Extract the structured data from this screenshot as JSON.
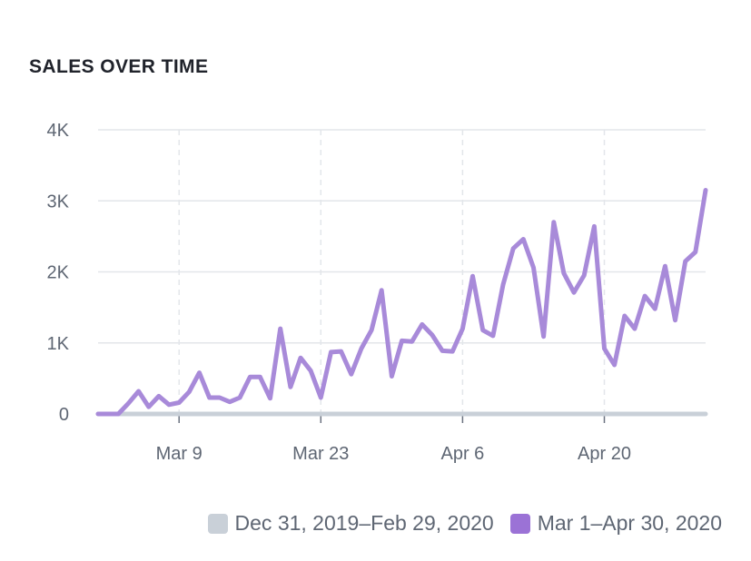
{
  "colors": {
    "previous": "#c9d0d8",
    "current": "#a88ad9",
    "current_swatch": "#9b72d6",
    "grid": "#e3e6ea",
    "axis_text": "#5e6673"
  },
  "chart_data": {
    "type": "line",
    "title": "SALES OVER TIME",
    "xlabel": "",
    "ylabel": "",
    "ylim": [
      0,
      4000
    ],
    "y_ticks": [
      {
        "value": 0,
        "label": "0"
      },
      {
        "value": 1000,
        "label": "1K"
      },
      {
        "value": 2000,
        "label": "2K"
      },
      {
        "value": 3000,
        "label": "3K"
      },
      {
        "value": 4000,
        "label": "4K"
      }
    ],
    "x_ticks": [
      {
        "date": "2020-03-09",
        "label": "Mar 9"
      },
      {
        "date": "2020-03-23",
        "label": "Mar 23"
      },
      {
        "date": "2020-04-06",
        "label": "Apr 6"
      },
      {
        "date": "2020-04-20",
        "label": "Apr 20"
      }
    ],
    "grid": true,
    "legend_position": "bottom-right",
    "series": [
      {
        "name": "Dec 31, 2019–Feb 29, 2020",
        "color": "#c9d0d8",
        "x": [
          "2020-03-01",
          "2020-04-30"
        ],
        "y": [
          0,
          0
        ]
      },
      {
        "name": "Mar 1–Apr 30, 2020",
        "color": "#a88ad9",
        "x": [
          "2020-03-01",
          "2020-03-02",
          "2020-03-03",
          "2020-03-04",
          "2020-03-05",
          "2020-03-06",
          "2020-03-07",
          "2020-03-08",
          "2020-03-09",
          "2020-03-10",
          "2020-03-11",
          "2020-03-12",
          "2020-03-13",
          "2020-03-14",
          "2020-03-15",
          "2020-03-16",
          "2020-03-17",
          "2020-03-18",
          "2020-03-19",
          "2020-03-20",
          "2020-03-21",
          "2020-03-22",
          "2020-03-23",
          "2020-03-24",
          "2020-03-25",
          "2020-03-26",
          "2020-03-27",
          "2020-03-28",
          "2020-03-29",
          "2020-03-30",
          "2020-03-31",
          "2020-04-01",
          "2020-04-02",
          "2020-04-03",
          "2020-04-04",
          "2020-04-05",
          "2020-04-06",
          "2020-04-07",
          "2020-04-08",
          "2020-04-09",
          "2020-04-10",
          "2020-04-11",
          "2020-04-12",
          "2020-04-13",
          "2020-04-14",
          "2020-04-15",
          "2020-04-16",
          "2020-04-17",
          "2020-04-18",
          "2020-04-19",
          "2020-04-20",
          "2020-04-21",
          "2020-04-22",
          "2020-04-23",
          "2020-04-24",
          "2020-04-25",
          "2020-04-26",
          "2020-04-27",
          "2020-04-28",
          "2020-04-29",
          "2020-04-30"
        ],
        "y": [
          0,
          0,
          0,
          150,
          320,
          100,
          250,
          130,
          160,
          310,
          580,
          230,
          230,
          170,
          230,
          520,
          520,
          220,
          1200,
          380,
          790,
          610,
          230,
          870,
          880,
          560,
          920,
          1180,
          1740,
          530,
          1030,
          1020,
          1260,
          1110,
          890,
          880,
          1200,
          1940,
          1180,
          1100,
          1820,
          2330,
          2460,
          2060,
          1090,
          2700,
          1980,
          1710,
          1950,
          2640,
          920,
          690,
          1380,
          1200,
          1660,
          1480,
          2080,
          1320,
          2150,
          2280,
          3150
        ]
      }
    ]
  },
  "legend": {
    "previous_label": "Dec 31, 2019–Feb 29, 2020",
    "current_label": "Mar 1–Apr 30, 2020"
  }
}
